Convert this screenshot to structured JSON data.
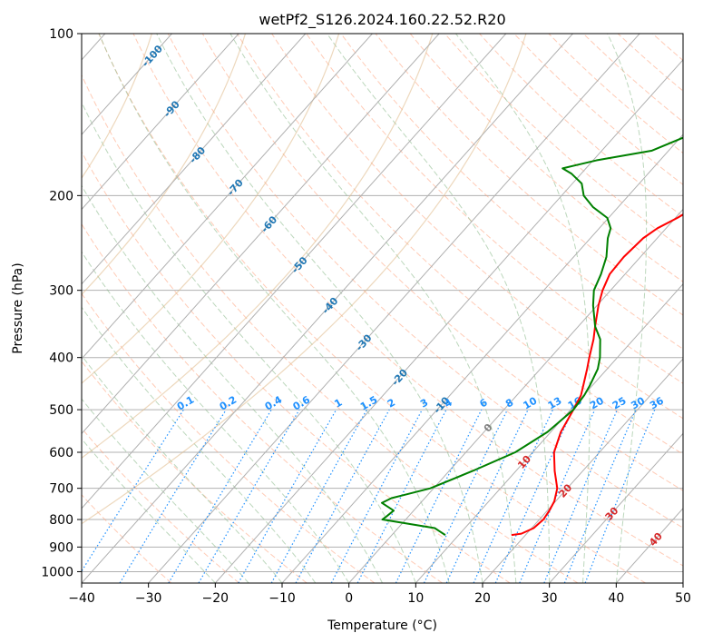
{
  "chart_data": {
    "type": "line",
    "subtype": "skew-t log-p diagram",
    "title": "wetPf2_S126.2024.160.22.52.R20",
    "xlabel": "Temperature (°C)",
    "ylabel": "Pressure (hPa)",
    "xlim": [
      -40,
      50
    ],
    "ylim": [
      1050,
      100
    ],
    "y_scale": "log",
    "x_ticks": [
      -40,
      -30,
      -20,
      -10,
      0,
      10,
      20,
      30,
      40,
      50
    ],
    "y_ticks": [
      100,
      200,
      300,
      400,
      500,
      600,
      700,
      800,
      900,
      1000
    ],
    "grid": true,
    "series": [
      {
        "key": "temperature",
        "color": "#ff0000",
        "points": [
          [
            855,
            17.9
          ],
          [
            850,
            19.2
          ],
          [
            830,
            20.3
          ],
          [
            800,
            20.6
          ],
          [
            770,
            20.3
          ],
          [
            740,
            19.8
          ],
          [
            700,
            18.5
          ],
          [
            650,
            15.8
          ],
          [
            600,
            13.2
          ],
          [
            550,
            11.5
          ],
          [
            500,
            10.4
          ],
          [
            470,
            9.6
          ],
          [
            450,
            8.6
          ],
          [
            420,
            7.0
          ],
          [
            400,
            5.8
          ],
          [
            370,
            4.0
          ],
          [
            350,
            2.5
          ],
          [
            320,
            0.2
          ],
          [
            300,
            -1.2
          ],
          [
            280,
            -2.3
          ],
          [
            260,
            -2.5
          ],
          [
            240,
            -2.1
          ],
          [
            230,
            -1.3
          ],
          [
            220,
            0.3
          ],
          [
            210,
            1.6
          ],
          [
            200,
            3.0
          ],
          [
            190,
            4.8
          ],
          [
            180,
            7.1
          ],
          [
            170,
            9.0
          ],
          [
            160,
            10.2
          ],
          [
            150,
            11.3
          ],
          [
            140,
            12.3
          ],
          [
            130,
            13.4
          ],
          [
            120,
            15.0
          ],
          [
            110,
            16.3
          ],
          [
            100,
            16.8
          ]
        ]
      },
      {
        "key": "dewpoint",
        "color": "#008000",
        "points": [
          [
            855,
            8.0
          ],
          [
            840,
            6.5
          ],
          [
            830,
            5.5
          ],
          [
            800,
            -3.5
          ],
          [
            790,
            -3.3
          ],
          [
            770,
            -3.0
          ],
          [
            745,
            -5.8
          ],
          [
            730,
            -5.0
          ],
          [
            720,
            -3.5
          ],
          [
            700,
            -0.5
          ],
          [
            650,
            3.5
          ],
          [
            600,
            7.4
          ],
          [
            550,
            9.5
          ],
          [
            500,
            10.4
          ],
          [
            470,
            10.1
          ],
          [
            450,
            9.6
          ],
          [
            420,
            8.6
          ],
          [
            400,
            7.4
          ],
          [
            370,
            5.0
          ],
          [
            350,
            2.5
          ],
          [
            320,
            -0.6
          ],
          [
            300,
            -2.5
          ],
          [
            280,
            -3.6
          ],
          [
            260,
            -5.1
          ],
          [
            240,
            -7.4
          ],
          [
            230,
            -8.3
          ],
          [
            220,
            -10.2
          ],
          [
            210,
            -13.8
          ],
          [
            200,
            -16.7
          ],
          [
            190,
            -18.6
          ],
          [
            182,
            -21.5
          ],
          [
            178,
            -23.5
          ],
          [
            172,
            -19.5
          ],
          [
            165,
            -12.5
          ],
          [
            155,
            -9.2
          ],
          [
            145,
            -7.4
          ],
          [
            130,
            -6.0
          ],
          [
            120,
            -5.0
          ],
          [
            110,
            -0.8
          ],
          [
            100,
            1.3
          ]
        ]
      }
    ],
    "dry_adiabats_C": [
      -30,
      -20,
      -10,
      0,
      10,
      20,
      30,
      40,
      50,
      60,
      70,
      80,
      90,
      100,
      110,
      120,
      130,
      140,
      150,
      160,
      170,
      180,
      190,
      200,
      210,
      220,
      230,
      240
    ],
    "moist_adiabats_C": [
      -20,
      -15,
      -10,
      -5,
      0,
      5,
      10,
      15,
      20,
      25,
      30,
      35,
      40
    ],
    "mixing_ratio_labels": [
      "0.1",
      "0.2",
      "0.4",
      "0.6",
      "1",
      "1.5",
      "2",
      "3",
      "4",
      "6",
      "8",
      "10",
      "13",
      "16",
      "20",
      "25",
      "30",
      "36"
    ],
    "mixing_ratio_values": [
      0.1,
      0.2,
      0.4,
      0.6,
      1,
      1.5,
      2,
      3,
      4,
      6,
      8,
      10,
      13,
      16,
      20,
      25,
      30,
      36
    ],
    "isotherm_labels": [
      {
        "text": "-100",
        "value": -100,
        "p": 110
      },
      {
        "text": "-90",
        "value": -90,
        "p": 138
      },
      {
        "text": "-80",
        "value": -80,
        "p": 168
      },
      {
        "text": "-70",
        "value": -70,
        "p": 193
      },
      {
        "text": "-60",
        "value": -60,
        "p": 226
      },
      {
        "text": "-50",
        "value": -50,
        "p": 269
      },
      {
        "text": "-40",
        "value": -40,
        "p": 320
      },
      {
        "text": "-30",
        "value": -30,
        "p": 375
      },
      {
        "text": "-20",
        "value": -20,
        "p": 435
      },
      {
        "text": "-10",
        "value": -10,
        "p": 490
      },
      {
        "text": "0",
        "value": 0,
        "p": 540
      },
      {
        "text": "10",
        "value": 10,
        "p": 625
      },
      {
        "text": "20",
        "value": 20,
        "p": 707
      },
      {
        "text": "30",
        "value": 30,
        "p": 780
      },
      {
        "text": "40",
        "value": 40,
        "p": 870
      }
    ],
    "colors": {
      "isotherm": "#b0b0b0",
      "dry_adiabat": "#ffa07a",
      "moist_adiabat": "#8fbc8f",
      "mixing_ratio": "#1e90ff",
      "lcl_curve": "#deb887",
      "cold_label": "#1f77b4",
      "zero_label": "#808080",
      "warm_label": "#d62728"
    }
  }
}
